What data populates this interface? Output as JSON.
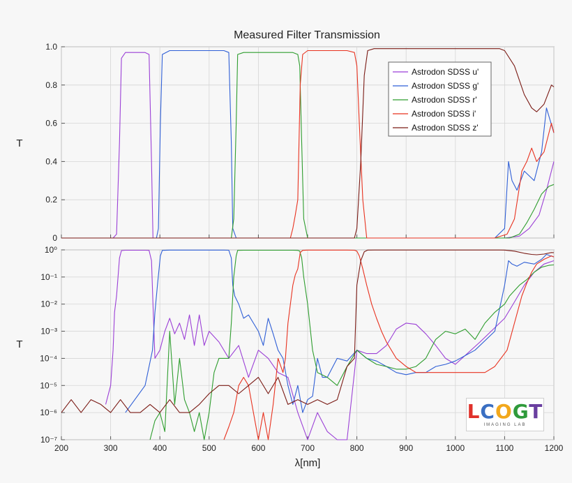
{
  "chart_data": [
    {
      "type": "line",
      "title": "Measured Filter Transmission",
      "xlabel": "",
      "ylabel": "T",
      "xlim": [
        200,
        1200
      ],
      "ylim": [
        0,
        1.0
      ],
      "y_scale": "linear",
      "x_ticks": [
        200,
        300,
        400,
        500,
        600,
        700,
        800,
        900,
        1000,
        1100,
        1200
      ],
      "y_ticks": [
        "0",
        "0.2",
        "0.4",
        "0.6",
        "0.8",
        "1.0"
      ],
      "y_tick_values": [
        0,
        0.2,
        0.4,
        0.6,
        0.8,
        1.0
      ],
      "grid": true,
      "legend_position": "top-right",
      "series": [
        {
          "name": "Astrodon SDSS u'",
          "color": "#9b3fd6",
          "x": [
            200,
            305,
            312,
            318,
            322,
            330,
            370,
            378,
            383,
            386,
            395,
            1000,
            1100,
            1130,
            1150,
            1170,
            1185,
            1200
          ],
          "y": [
            0,
            0,
            0.02,
            0.5,
            0.94,
            0.97,
            0.97,
            0.96,
            0.4,
            0,
            0,
            0,
            0,
            0.01,
            0.05,
            0.12,
            0.25,
            0.4
          ]
        },
        {
          "name": "Astrodon SDSS g'",
          "color": "#2f5fd6",
          "x": [
            200,
            393,
            397,
            401,
            405,
            420,
            530,
            540,
            545,
            548,
            555,
            1080,
            1100,
            1108,
            1115,
            1125,
            1140,
            1160,
            1175,
            1185,
            1200
          ],
          "y": [
            0,
            0,
            0.05,
            0.6,
            0.96,
            0.98,
            0.98,
            0.97,
            0.5,
            0.05,
            0,
            0,
            0.05,
            0.4,
            0.3,
            0.25,
            0.35,
            0.3,
            0.45,
            0.68,
            0.55
          ]
        },
        {
          "name": "Astrodon SDSS r'",
          "color": "#2e9d2e",
          "x": [
            200,
            545,
            550,
            555,
            558,
            570,
            670,
            680,
            684,
            688,
            692,
            700,
            1110,
            1130,
            1145,
            1160,
            1175,
            1190,
            1200
          ],
          "y": [
            0,
            0,
            0.1,
            0.6,
            0.96,
            0.97,
            0.97,
            0.96,
            0.9,
            0.5,
            0.1,
            0,
            0,
            0.02,
            0.08,
            0.15,
            0.23,
            0.27,
            0.28
          ]
        },
        {
          "name": "Astrodon SDSS i'",
          "color": "#e8321f",
          "x": [
            200,
            665,
            670,
            675,
            680,
            685,
            690,
            700,
            780,
            795,
            800,
            805,
            812,
            820,
            1080,
            1105,
            1120,
            1135,
            1145,
            1155,
            1165,
            1180,
            1195,
            1200
          ],
          "y": [
            0,
            0,
            0.05,
            0.12,
            0.2,
            0.8,
            0.96,
            0.98,
            0.98,
            0.97,
            0.9,
            0.6,
            0.2,
            0,
            0,
            0.02,
            0.1,
            0.35,
            0.4,
            0.47,
            0.4,
            0.45,
            0.6,
            0.55
          ]
        },
        {
          "name": "Astrodon SDSS z'",
          "color": "#7a1a14",
          "x": [
            200,
            795,
            800,
            808,
            815,
            822,
            835,
            1000,
            1090,
            1100,
            1120,
            1140,
            1155,
            1165,
            1180,
            1195,
            1200
          ],
          "y": [
            0,
            0,
            0.05,
            0.4,
            0.85,
            0.98,
            0.99,
            0.99,
            0.99,
            0.98,
            0.9,
            0.75,
            0.68,
            0.66,
            0.7,
            0.8,
            0.79
          ]
        }
      ]
    },
    {
      "type": "line",
      "title": "",
      "xlabel": "λ[nm]",
      "ylabel": "T",
      "xlim": [
        200,
        1200
      ],
      "ylim": [
        1e-07,
        1
      ],
      "y_scale": "log",
      "x_ticks": [
        200,
        300,
        400,
        500,
        600,
        700,
        800,
        900,
        1000,
        1100,
        1200
      ],
      "y_ticks": [
        "10⁰",
        "10⁻¹",
        "10⁻²",
        "10⁻³",
        "10⁻⁴",
        "10⁻⁵",
        "10⁻⁶",
        "10⁻⁷"
      ],
      "y_tick_values": [
        1,
        0.1,
        0.01,
        0.001,
        0.0001,
        1e-05,
        1e-06,
        1e-07
      ],
      "grid": true,
      "series": [
        {
          "name": "Astrodon SDSS u'",
          "color": "#9b3fd6",
          "x": [
            290,
            300,
            305,
            308,
            312,
            318,
            322,
            330,
            370,
            378,
            383,
            386,
            390,
            400,
            410,
            420,
            430,
            440,
            450,
            460,
            470,
            480,
            490,
            500,
            520,
            540,
            560,
            580,
            600,
            620,
            640,
            660,
            680,
            700,
            720,
            740,
            760,
            780,
            800,
            820,
            840,
            860,
            880,
            900,
            920,
            940,
            960,
            980,
            1000,
            1050,
            1100,
            1120,
            1140,
            1160,
            1180,
            1200
          ],
          "y": [
            2e-06,
            1e-05,
            0.0002,
            0.005,
            0.02,
            0.5,
            0.94,
            0.97,
            0.97,
            0.96,
            0.4,
            0.01,
            0.0001,
            0.0002,
            0.001,
            0.003,
            0.0008,
            0.002,
            0.0005,
            0.004,
            0.0003,
            0.004,
            0.0003,
            0.001,
            0.0004,
            0.0001,
            0.0003,
            2e-05,
            0.0002,
            0.0001,
            3e-05,
            2e-05,
            1e-06,
            1e-07,
            1e-06,
            2e-07,
            1e-07,
            1e-07,
            0.0002,
            0.00015,
            0.00015,
            0.0003,
            0.0012,
            0.002,
            0.0018,
            0.0008,
            0.0003,
            0.0001,
            6e-05,
            0.0004,
            0.003,
            0.012,
            0.05,
            0.15,
            0.3,
            0.4
          ]
        },
        {
          "name": "Astrodon SDSS g'",
          "color": "#2f5fd6",
          "x": [
            330,
            370,
            385,
            390,
            395,
            401,
            405,
            420,
            530,
            540,
            545,
            548,
            552,
            560,
            570,
            580,
            590,
            600,
            610,
            620,
            630,
            640,
            650,
            660,
            670,
            680,
            690,
            700,
            710,
            720,
            730,
            740,
            760,
            780,
            800,
            820,
            840,
            860,
            880,
            900,
            920,
            940,
            960,
            980,
            1000,
            1040,
            1080,
            1100,
            1108,
            1115,
            1125,
            1140,
            1160,
            1175,
            1185,
            1200
          ],
          "y": [
            1e-06,
            1e-05,
            0.0002,
            0.005,
            0.05,
            0.6,
            0.96,
            0.98,
            0.98,
            0.97,
            0.5,
            0.05,
            0.02,
            0.01,
            0.003,
            0.004,
            0.002,
            0.001,
            0.0003,
            0.003,
            0.0008,
            0.0002,
            0.0001,
            1e-05,
            2e-06,
            1e-05,
            1e-06,
            3e-06,
            4e-06,
            0.0001,
            2e-05,
            2e-05,
            0.0001,
            8e-05,
            0.0002,
            0.0001,
            8e-05,
            5e-05,
            3e-05,
            2.5e-05,
            3e-05,
            3e-05,
            5e-05,
            6e-05,
            8e-05,
            0.0002,
            0.001,
            0.05,
            0.4,
            0.3,
            0.25,
            0.35,
            0.3,
            0.45,
            0.68,
            0.55
          ]
        },
        {
          "name": "Astrodon SDSS r'",
          "color": "#2e9d2e",
          "x": [
            380,
            390,
            400,
            410,
            420,
            430,
            440,
            450,
            460,
            470,
            480,
            490,
            500,
            510,
            520,
            530,
            540,
            545,
            550,
            555,
            558,
            570,
            670,
            680,
            684,
            688,
            692,
            700,
            710,
            720,
            740,
            760,
            780,
            800,
            820,
            840,
            860,
            880,
            900,
            920,
            940,
            960,
            980,
            1000,
            1020,
            1040,
            1060,
            1080,
            1100,
            1110,
            1130,
            1145,
            1160,
            1175,
            1190,
            1200
          ],
          "y": [
            1e-07,
            5e-07,
            1e-06,
            2e-07,
            0.001,
            2e-06,
            0.0001,
            3e-06,
            1e-06,
            2e-07,
            1e-06,
            1e-07,
            1e-06,
            3e-05,
            0.0001,
            0.0001,
            0.0001,
            0.002,
            0.1,
            0.6,
            0.96,
            0.97,
            0.97,
            0.96,
            0.9,
            0.5,
            0.1,
            0.01,
            0.0002,
            3e-05,
            2e-05,
            1e-05,
            5e-05,
            0.0002,
            0.0001,
            6e-05,
            5e-05,
            4e-05,
            4e-05,
            5e-05,
            0.0001,
            0.0005,
            0.001,
            0.0008,
            0.0012,
            0.0005,
            0.002,
            0.005,
            0.01,
            0.02,
            0.05,
            0.08,
            0.15,
            0.23,
            0.27,
            0.28
          ]
        },
        {
          "name": "Astrodon SDSS i'",
          "color": "#e8321f",
          "x": [
            530,
            540,
            550,
            560,
            570,
            580,
            590,
            600,
            610,
            620,
            630,
            640,
            650,
            655,
            660,
            665,
            670,
            675,
            680,
            685,
            690,
            700,
            780,
            795,
            800,
            805,
            812,
            820,
            830,
            840,
            850,
            860,
            880,
            900,
            920,
            940,
            960,
            980,
            1000,
            1020,
            1040,
            1060,
            1080,
            1105,
            1120,
            1135,
            1145,
            1155,
            1165,
            1180,
            1195,
            1200
          ],
          "y": [
            1e-07,
            3e-07,
            1e-06,
            1e-05,
            2e-05,
            1e-05,
            1e-06,
            1e-07,
            1e-06,
            1e-07,
            2e-06,
            0.0001,
            3e-05,
            0.0001,
            0.002,
            0.01,
            0.05,
            0.12,
            0.2,
            0.8,
            0.96,
            0.98,
            0.98,
            0.97,
            0.9,
            0.6,
            0.2,
            0.05,
            0.01,
            0.003,
            0.001,
            0.0004,
            0.0001,
            5e-05,
            3e-05,
            3e-05,
            3e-05,
            3e-05,
            3e-05,
            3e-05,
            3e-05,
            3e-05,
            5e-05,
            0.0002,
            0.002,
            0.02,
            0.06,
            0.15,
            0.3,
            0.45,
            0.6,
            0.55
          ]
        },
        {
          "name": "Astrodon SDSS z'",
          "color": "#7a1a14",
          "x": [
            200,
            220,
            240,
            260,
            280,
            300,
            320,
            340,
            360,
            380,
            400,
            420,
            440,
            460,
            480,
            500,
            520,
            540,
            560,
            580,
            600,
            620,
            640,
            660,
            680,
            700,
            720,
            740,
            760,
            780,
            795,
            800,
            808,
            815,
            822,
            835,
            1000,
            1090,
            1100,
            1120,
            1140,
            1155,
            1165,
            1180,
            1195,
            1200
          ],
          "y": [
            1e-06,
            3e-06,
            1e-06,
            3e-06,
            2e-06,
            1e-06,
            3e-06,
            1e-06,
            1e-06,
            2e-06,
            1e-06,
            3e-06,
            1e-06,
            1e-06,
            2e-06,
            5e-06,
            1e-05,
            1e-05,
            5e-06,
            1e-05,
            2e-05,
            5e-06,
            2e-05,
            2e-06,
            3e-06,
            2e-06,
            3e-06,
            2e-06,
            3e-06,
            5e-05,
            0.0001,
            0.05,
            0.4,
            0.85,
            0.98,
            0.99,
            0.99,
            0.99,
            0.98,
            0.9,
            0.75,
            0.68,
            0.66,
            0.7,
            0.8,
            0.79
          ]
        }
      ]
    }
  ],
  "legend": {
    "entries": [
      "Astrodon SDSS u'",
      "Astrodon SDSS g'",
      "Astrodon SDSS r'",
      "Astrodon SDSS i'",
      "Astrodon SDSS z'"
    ]
  },
  "logo": {
    "text": "LCOGT",
    "subtitle": "IMAGING LAB"
  }
}
